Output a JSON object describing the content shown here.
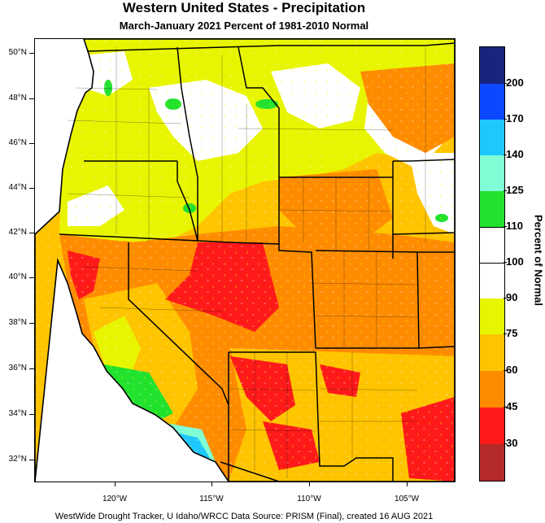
{
  "title": "Western United States - Precipitation",
  "subtitle": "March-January 2021  Percent of 1981-2010 Normal",
  "footer": "WestWide Drought Tracker, U Idaho/WRCC Data Source: PRISM (Final), created 16 AUG 2021",
  "latitude_labels": [
    "50°N",
    "48°N",
    "46°N",
    "44°N",
    "42°N",
    "40°N",
    "38°N",
    "36°N",
    "34°N",
    "32°N"
  ],
  "longitude_labels": [
    "120°W",
    "115°W",
    "110°W",
    "105°W"
  ],
  "legend": {
    "title": "Percent of Normal",
    "labels": [
      "200",
      "170",
      "140",
      "125",
      "110",
      "100",
      "90",
      "75",
      "60",
      "45",
      "30"
    ],
    "colors": [
      "#1a237e",
      "#0d47ff",
      "#1ec8ff",
      "#80ffd6",
      "#22e22e",
      "#ffffff",
      "#ffffff",
      "#e8f500",
      "#ffc400",
      "#ff8c00",
      "#ff1a1a",
      "#b52a2a"
    ]
  }
}
